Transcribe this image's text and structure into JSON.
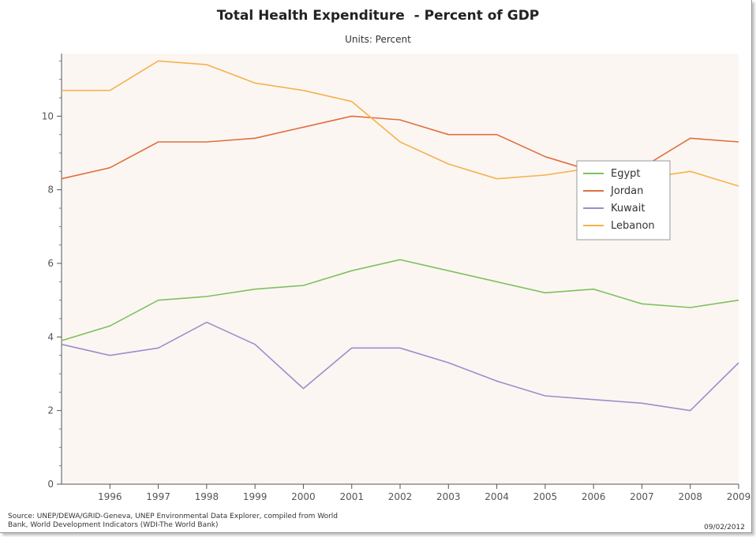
{
  "title": "Total Health Expenditure  - Percent of GDP",
  "subtitle": "Units: Percent",
  "source_line1": "Source: UNEP/DEWA/GRID-Geneva, UNEP Environmental Data Explorer, compiled from World",
  "source_line2": "Bank, World Development Indicators (WDI-The World Bank)",
  "date": "09/02/2012",
  "chart_data": {
    "type": "line",
    "title": "Total Health Expenditure  - Percent of GDP",
    "subtitle": "Units: Percent",
    "xlabel": "",
    "ylabel": "",
    "x": [
      1995,
      1996,
      1997,
      1998,
      1999,
      2000,
      2001,
      2002,
      2003,
      2004,
      2005,
      2006,
      2007,
      2008,
      2009
    ],
    "xticks": [
      "1996",
      "1997",
      "1998",
      "1999",
      "2000",
      "2001",
      "2002",
      "2003",
      "2004",
      "2005",
      "2006",
      "2007",
      "2008",
      "2009"
    ],
    "yticks": [
      "0",
      "2",
      "4",
      "6",
      "8",
      "10"
    ],
    "xlim": [
      1995,
      2009
    ],
    "ylim": [
      0,
      11.7
    ],
    "grid": false,
    "legend": "right",
    "background": "#fcf6f3",
    "series": [
      {
        "name": "Egypt",
        "color": "#7dc25e",
        "values": [
          3.9,
          4.3,
          5.0,
          5.1,
          5.3,
          5.4,
          5.8,
          6.1,
          5.8,
          5.5,
          5.2,
          5.3,
          4.9,
          4.8,
          5.0
        ]
      },
      {
        "name": "Jordan",
        "color": "#e0703c",
        "values": [
          8.3,
          8.6,
          9.3,
          9.3,
          9.4,
          9.7,
          10.0,
          9.9,
          9.5,
          9.5,
          8.9,
          8.5,
          8.6,
          9.4,
          9.3
        ]
      },
      {
        "name": "Kuwait",
        "color": "#9d8ecb",
        "values": [
          3.8,
          3.5,
          3.7,
          4.4,
          3.8,
          2.6,
          3.7,
          3.7,
          3.3,
          2.8,
          2.4,
          2.3,
          2.2,
          2.0,
          3.3
        ]
      },
      {
        "name": "Lebanon",
        "color": "#f5b24a",
        "values": [
          10.7,
          10.7,
          11.5,
          11.4,
          10.9,
          10.7,
          10.4,
          9.3,
          8.7,
          8.3,
          8.4,
          8.6,
          8.3,
          8.5,
          8.1
        ]
      }
    ]
  }
}
